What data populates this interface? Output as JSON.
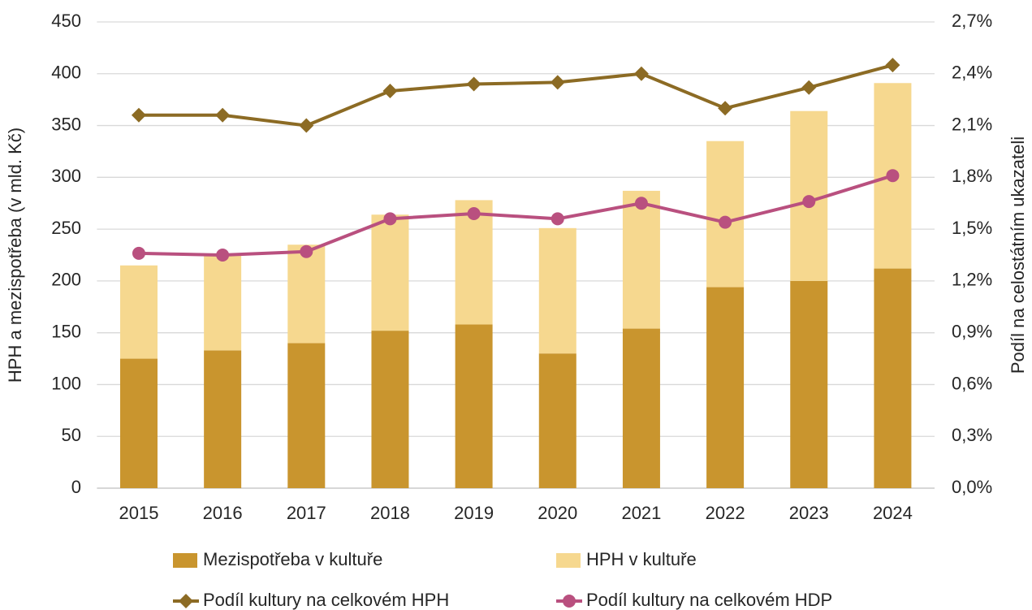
{
  "chart_data": {
    "type": "bar",
    "categories": [
      "2015",
      "2016",
      "2017",
      "2018",
      "2019",
      "2020",
      "2021",
      "2022",
      "2023",
      "2024"
    ],
    "ylabel": "HPH a mezispotřeba (v mld. Kč)",
    "y2label": "Podíl na celostátním ukazateli",
    "ylim": [
      0,
      450
    ],
    "yticks": [
      0,
      50,
      100,
      150,
      200,
      250,
      300,
      350,
      400,
      450
    ],
    "y2lim": [
      0,
      2.7
    ],
    "y2ticks": [
      {
        "value": 0,
        "label": "0,0%"
      },
      {
        "value": 0.3,
        "label": "0,3%"
      },
      {
        "value": 0.6,
        "label": "0,6%"
      },
      {
        "value": 0.9,
        "label": "0,9%"
      },
      {
        "value": 1.2,
        "label": "1,2%"
      },
      {
        "value": 1.5,
        "label": "1,5%"
      },
      {
        "value": 1.8,
        "label": "1,8%"
      },
      {
        "value": 2.1,
        "label": "2,1%"
      },
      {
        "value": 2.4,
        "label": "2,4%"
      },
      {
        "value": 2.7,
        "label": "2,7%"
      }
    ],
    "grid": true,
    "stacked": true,
    "legend": "bottom",
    "series": [
      {
        "name": "Mezispotřeba v kultuře",
        "type": "bar",
        "color": "#c9952e",
        "values": [
          125,
          133,
          140,
          152,
          158,
          130,
          154,
          194,
          200,
          212
        ]
      },
      {
        "name": "HPH v kultuře",
        "type": "bar",
        "color": "#f6d88f",
        "values": [
          90,
          92,
          95,
          112,
          120,
          121,
          133,
          141,
          164,
          179
        ]
      },
      {
        "name": "Podíl kultury na celkovém HPH",
        "type": "line",
        "axis": "y2",
        "color": "#8c6b24",
        "marker": "diamond",
        "values": [
          2.16,
          2.16,
          2.1,
          2.3,
          2.34,
          2.35,
          2.4,
          2.2,
          2.32,
          2.45
        ]
      },
      {
        "name": "Podíl kultury na celkovém HDP",
        "type": "line",
        "axis": "y2",
        "color": "#b9507f",
        "marker": "circle",
        "values": [
          1.36,
          1.35,
          1.37,
          1.56,
          1.59,
          1.56,
          1.65,
          1.54,
          1.66,
          1.81
        ]
      }
    ]
  }
}
